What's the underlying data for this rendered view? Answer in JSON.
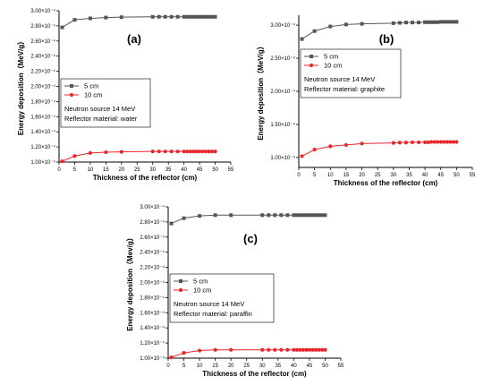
{
  "chart_data": [
    {
      "type": "line",
      "panel_label": "(a)",
      "xlabel": "Thickness of the reflector (cm)",
      "ylabel": "Energy deposition（MeV/g）",
      "xlim": [
        0,
        55
      ],
      "ylim": [
        1.0,
        3.0
      ],
      "xticks": [
        "0",
        "5",
        "10",
        "15",
        "20",
        "25",
        "30",
        "35",
        "40",
        "45",
        "50",
        "55"
      ],
      "yticks": [
        1.0,
        1.2,
        1.4,
        1.6,
        1.8,
        2.0,
        2.2,
        2.4,
        2.6,
        2.8,
        3.0
      ],
      "ytick_labels": [
        "1.00×10⁻⁴",
        "1.20×10⁻⁴",
        "1.40×10⁻⁴",
        "1.60×10⁻⁴",
        "1.80×10⁻⁴",
        "2.00×10⁻⁴",
        "2.20×10⁻⁴",
        "2.40×10⁻⁴",
        "2.60×10⁻⁴",
        "2.80×10⁻⁴",
        "3.00×10⁻⁴"
      ],
      "annotations": [
        "Neutron source 14 MeV",
        "Reflector material: water"
      ],
      "x": [
        1,
        5,
        10,
        15,
        20,
        30,
        32,
        34,
        36,
        38,
        40,
        41,
        42,
        43,
        44,
        45,
        46,
        47,
        48,
        49,
        50
      ],
      "series": [
        {
          "name": "5 cm",
          "color": "#555555",
          "marker": "square",
          "values": [
            2.78,
            2.88,
            2.9,
            2.91,
            2.915,
            2.92,
            2.92,
            2.92,
            2.92,
            2.92,
            2.92,
            2.92,
            2.92,
            2.92,
            2.92,
            2.92,
            2.92,
            2.92,
            2.92,
            2.92,
            2.92
          ]
        },
        {
          "name": "10 cm",
          "color": "#e8262b",
          "marker": "circle",
          "values": [
            1.01,
            1.08,
            1.12,
            1.13,
            1.135,
            1.14,
            1.14,
            1.14,
            1.14,
            1.14,
            1.14,
            1.14,
            1.14,
            1.14,
            1.14,
            1.14,
            1.14,
            1.14,
            1.14,
            1.14,
            1.14
          ]
        }
      ]
    },
    {
      "type": "line",
      "panel_label": "(b)",
      "xlabel": "Thickness of the reflector (cm)",
      "ylabel": "Energy deposition（MeV/g）",
      "xlim": [
        0,
        55
      ],
      "ylim": [
        0.85,
        3.15
      ],
      "xticks": [
        "0",
        "5",
        "10",
        "15",
        "20",
        "25",
        "30",
        "35",
        "40",
        "45",
        "50",
        "55"
      ],
      "yticks": [
        1.0,
        1.5,
        2.0,
        2.5,
        3.0
      ],
      "ytick_labels": [
        "1.00×10⁻⁴",
        "1.50×10⁻⁴",
        "2.00×10⁻⁴",
        "2.50×10⁻⁴",
        "3.00×10⁻⁴"
      ],
      "annotations": [
        "Neutron source 14 MeV",
        "Reflector material: graphite"
      ],
      "x": [
        1,
        5,
        10,
        15,
        20,
        30,
        32,
        34,
        36,
        38,
        40,
        41,
        42,
        43,
        44,
        45,
        46,
        47,
        48,
        49,
        50
      ],
      "series": [
        {
          "name": "5 cm",
          "color": "#555555",
          "marker": "square",
          "values": [
            2.79,
            2.91,
            2.98,
            3.01,
            3.02,
            3.03,
            3.035,
            3.04,
            3.04,
            3.04,
            3.045,
            3.045,
            3.045,
            3.045,
            3.045,
            3.05,
            3.05,
            3.05,
            3.05,
            3.05,
            3.05
          ]
        },
        {
          "name": "10 cm",
          "color": "#e8262b",
          "marker": "circle",
          "values": [
            1.02,
            1.12,
            1.17,
            1.19,
            1.21,
            1.22,
            1.225,
            1.225,
            1.23,
            1.23,
            1.23,
            1.23,
            1.235,
            1.235,
            1.235,
            1.235,
            1.235,
            1.235,
            1.235,
            1.235,
            1.235
          ]
        }
      ]
    },
    {
      "type": "line",
      "panel_label": "(c)",
      "xlabel": "Thickness of the reflector (cm)",
      "ylabel": "Energy deposition（Mev/g）",
      "xlim": [
        0,
        55
      ],
      "ylim": [
        1.0,
        3.0
      ],
      "xticks": [
        "0",
        "5",
        "10",
        "15",
        "20",
        "25",
        "30",
        "35",
        "40",
        "45",
        "50",
        "55"
      ],
      "yticks": [
        1.0,
        1.2,
        1.4,
        1.6,
        1.8,
        2.0,
        2.2,
        2.4,
        2.6,
        2.8,
        3.0
      ],
      "ytick_labels": [
        "1.00×10⁻⁴",
        "1.20×10⁻⁴",
        "1.40×10⁻⁴",
        "1.60×10⁻⁴",
        "1.80×10⁻⁴",
        "2.00×10⁻⁴",
        "2.20×10⁻⁴",
        "2.40×10⁻⁴",
        "2.60×10⁻⁴",
        "2.80×10⁻⁴",
        "3.00×10⁻⁴"
      ],
      "annotations": [
        "Neutron source 14 MeV",
        "Reflector material: paraffin"
      ],
      "x": [
        1,
        5,
        10,
        15,
        20,
        30,
        32,
        34,
        36,
        38,
        40,
        41,
        42,
        43,
        44,
        45,
        46,
        47,
        48,
        49,
        50
      ],
      "series": [
        {
          "name": "5 cm",
          "color": "#555555",
          "marker": "square",
          "values": [
            2.78,
            2.85,
            2.88,
            2.89,
            2.89,
            2.89,
            2.89,
            2.89,
            2.89,
            2.89,
            2.89,
            2.89,
            2.89,
            2.89,
            2.89,
            2.89,
            2.89,
            2.89,
            2.89,
            2.89,
            2.89
          ]
        },
        {
          "name": "10 cm",
          "color": "#e8262b",
          "marker": "circle",
          "values": [
            1.01,
            1.07,
            1.1,
            1.11,
            1.11,
            1.11,
            1.11,
            1.11,
            1.11,
            1.11,
            1.11,
            1.11,
            1.11,
            1.11,
            1.11,
            1.11,
            1.11,
            1.11,
            1.11,
            1.11,
            1.11
          ]
        }
      ]
    }
  ]
}
